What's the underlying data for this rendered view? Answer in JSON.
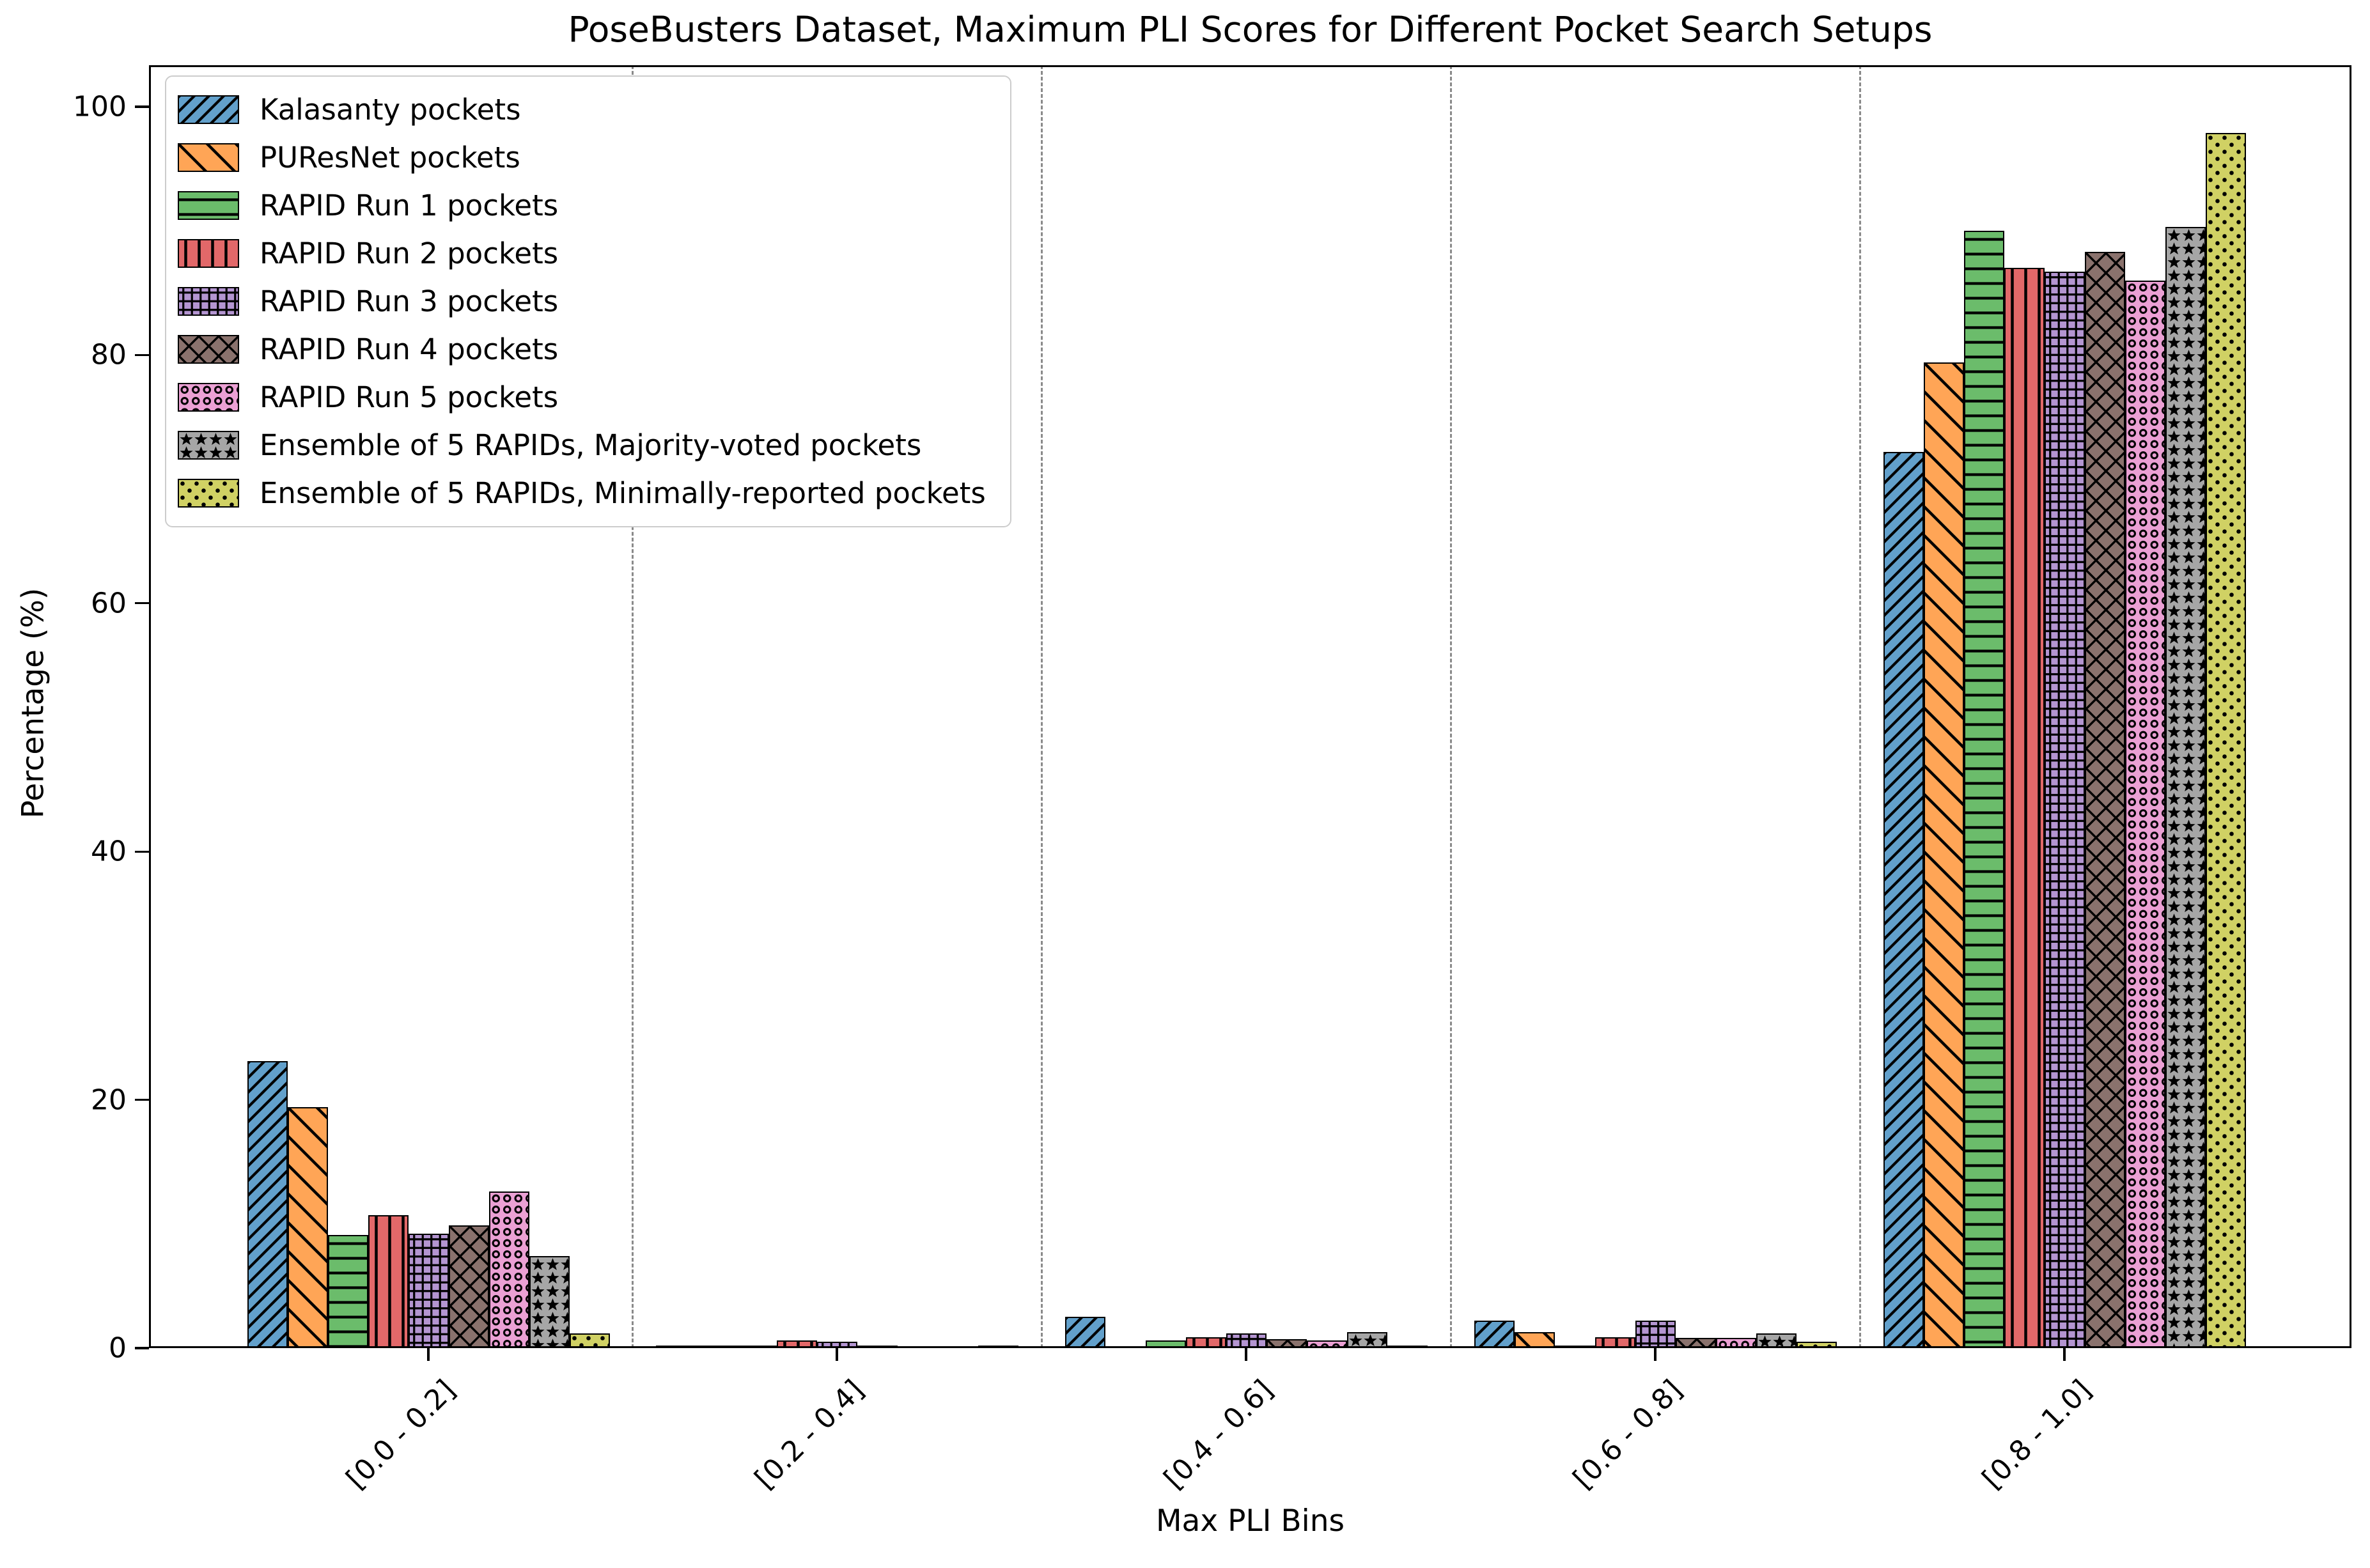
{
  "title": "PoseBusters Dataset, Maximum PLI Scores for Different Pocket Search Setups",
  "xlabel": "Max PLI Bins",
  "ylabel": "Percentage (%)",
  "chart_data": {
    "type": "bar",
    "title": "PoseBusters Dataset, Maximum PLI Scores for Different Pocket Search Setups",
    "xlabel": "Max PLI Bins",
    "ylabel": "Percentage (%)",
    "categories": [
      "[0.0 - 0.2]",
      "[0.2 - 0.4]",
      "[0.4 - 0.6]",
      "[0.6 - 0.8]",
      "[0.8 - 1.0]"
    ],
    "ylim": [
      0,
      100
    ],
    "yticks": [
      0,
      20,
      40,
      60,
      80,
      100
    ],
    "grid": "vertical dashed separators between bins",
    "legend_position": "upper left",
    "bar_edge_color": "#000000",
    "separator_color": "#8a8a8a",
    "series": [
      {
        "name": "Kalasanty pockets",
        "color": "#62A0CB",
        "hatch": "//",
        "values": [
          23.1,
          0.2,
          2.5,
          2.2,
          72.2
        ]
      },
      {
        "name": "PUResNet pockets",
        "color": "#FFA556",
        "hatch": "\\",
        "values": [
          19.4,
          0.2,
          0.0,
          1.3,
          79.4
        ]
      },
      {
        "name": "RAPID Run 1 pockets",
        "color": "#6BBC6B",
        "hatch": "-",
        "values": [
          9.1,
          0.2,
          0.6,
          0.2,
          90.0
        ]
      },
      {
        "name": "RAPID Run 2 pockets",
        "color": "#E26869",
        "hatch": "|",
        "values": [
          10.7,
          0.6,
          0.9,
          0.9,
          87.0
        ]
      },
      {
        "name": "RAPID Run 3 pockets",
        "color": "#B495D1",
        "hatch": "+",
        "values": [
          9.2,
          0.5,
          1.2,
          2.2,
          86.7
        ]
      },
      {
        "name": "RAPID Run 4 pockets",
        "color": "#8A726D",
        "hatch": "x",
        "values": [
          9.9,
          0.2,
          0.7,
          0.8,
          88.3
        ]
      },
      {
        "name": "RAPID Run 5 pockets",
        "color": "#EBA0D4",
        "hatch": "o",
        "values": [
          12.6,
          0.0,
          0.6,
          0.8,
          86.0
        ]
      },
      {
        "name": "Ensemble of 5 RAPIDs, Majority-voted pockets",
        "color": "#A6A6A6",
        "hatch": "*",
        "values": [
          7.4,
          0.0,
          1.3,
          1.2,
          90.3
        ]
      },
      {
        "name": "Ensemble of 5 RAPIDs, Minimally-reported pockets",
        "color": "#D0D164",
        "hatch": ".",
        "values": [
          1.2,
          0.2,
          0.2,
          0.5,
          97.9
        ]
      }
    ]
  }
}
